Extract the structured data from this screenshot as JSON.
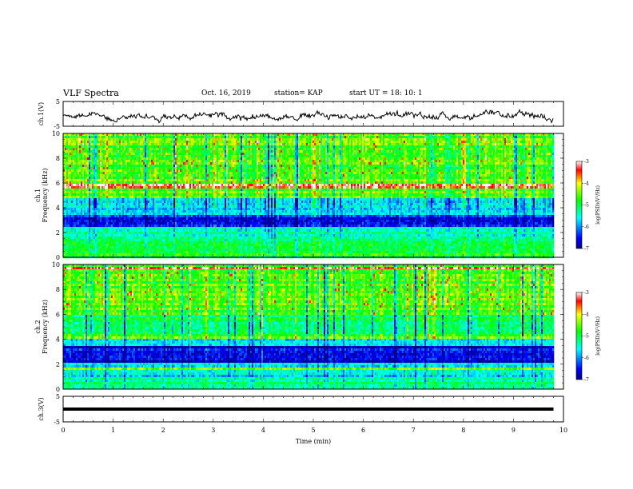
{
  "header": {
    "title": "VLF Spectra",
    "date": "Oct. 16, 2019",
    "station": "station= KAP",
    "start": "start  UT =   18: 10: 1"
  },
  "chart_data": [
    {
      "type": "line",
      "panel": "ch1-waveform",
      "ylabel": "ch.1(V)",
      "ylim": [
        -5,
        5
      ],
      "ytick_labels": [
        "5",
        "-5"
      ],
      "xlim": [
        0,
        10
      ],
      "note_values": "noisy waveform mostly between -3 and 2 V over 0 to 9.8 min",
      "x_end": 9.8,
      "color": "#000000"
    },
    {
      "type": "heatmap",
      "panel": "ch1-spectrogram",
      "ylabel": "ch.1\nFrequency (kHz)",
      "ylim": [
        0,
        10
      ],
      "ytick_labels": [
        "0",
        "2",
        "4",
        "6",
        "8",
        "10"
      ],
      "xlim": [
        0,
        10
      ],
      "x_end": 9.8,
      "colorbar": {
        "label": "log(PSD)(V²/Hz)",
        "range": [
          -7,
          -3
        ],
        "tick_labels": [
          "-3",
          "-4",
          "-5",
          "-6",
          "-7"
        ]
      },
      "bands_khz": [
        {
          "from": 0,
          "to": 0.5,
          "level": -4.8
        },
        {
          "from": 0.5,
          "to": 1.2,
          "level": -5.0
        },
        {
          "from": 1.2,
          "to": 2.5,
          "level": -5.3
        },
        {
          "from": 2.5,
          "to": 3.5,
          "level": -6.5
        },
        {
          "from": 3.5,
          "to": 4.8,
          "level": -5.6
        },
        {
          "from": 4.8,
          "to": 5.5,
          "level": -4.6
        },
        {
          "from": 5.5,
          "to": 10,
          "level": -4.6
        }
      ]
    },
    {
      "type": "heatmap",
      "panel": "ch2-spectrogram",
      "ylabel": "ch.2\nFrequency (kHz)",
      "ylim": [
        0,
        10
      ],
      "ytick_labels": [
        "0",
        "2",
        "4",
        "6",
        "8",
        "10"
      ],
      "xlim": [
        0,
        10
      ],
      "x_end": 9.8,
      "colorbar": {
        "label": "log(PSD)(V²/Hz)",
        "range": [
          -7,
          -3
        ],
        "tick_labels": [
          "-3",
          "-4",
          "-5",
          "-6",
          "-7"
        ]
      },
      "bands_khz": [
        {
          "from": 0,
          "to": 1.0,
          "level": -5.2
        },
        {
          "from": 1.0,
          "to": 2.0,
          "level": -5.6
        },
        {
          "from": 2.0,
          "to": 3.4,
          "level": -6.6
        },
        {
          "from": 3.4,
          "to": 4.2,
          "level": -5.7
        },
        {
          "from": 4.2,
          "to": 6.0,
          "level": -5.0
        },
        {
          "from": 6.0,
          "to": 10,
          "level": -4.6
        }
      ]
    },
    {
      "type": "line",
      "panel": "ch3-waveform",
      "ylabel": "ch.3(V)",
      "ylim": [
        -5,
        5
      ],
      "ytick_labels": [
        "5",
        "-5"
      ],
      "xlim": [
        0,
        10
      ],
      "xlabel": "Time (min)",
      "xtick_labels": [
        "0",
        "1",
        "2",
        "3",
        "4",
        "5",
        "6",
        "7",
        "8",
        "9",
        "10"
      ],
      "y_const": 0,
      "x_end": 9.8,
      "color": "#000000"
    }
  ]
}
